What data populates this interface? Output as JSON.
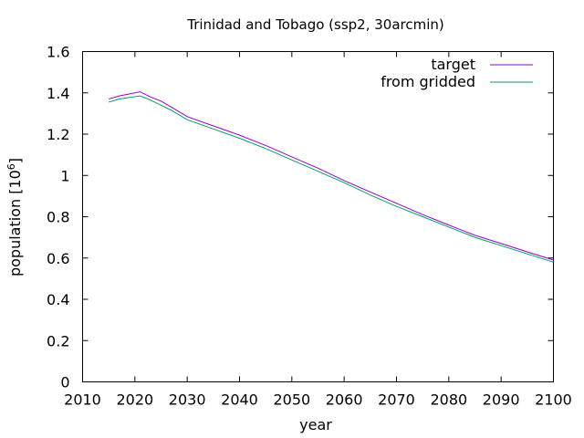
{
  "chart_data": {
    "type": "line",
    "title": "Trinidad and Tobago (ssp2, 30arcmin)",
    "xlabel": "year",
    "ylabel": "population [10",
    "ylabel_sup": "6",
    "ylabel_close": "]",
    "xlim": [
      2010,
      2100
    ],
    "ylim": [
      0,
      1.6
    ],
    "xticks": [
      "2010",
      "2020",
      "2030",
      "2040",
      "2050",
      "2060",
      "2070",
      "2080",
      "2090",
      "2100"
    ],
    "yticks": [
      "0",
      "0.2",
      "0.4",
      "0.6",
      "0.8",
      "1",
      "1.2",
      "1.4",
      "1.6"
    ],
    "grid": false,
    "legend_position": "top-right",
    "series": [
      {
        "name": "target",
        "color": "#9400d3",
        "x": [
          2015,
          2017,
          2019,
          2021,
          2023,
          2025,
          2027,
          2030,
          2035,
          2040,
          2045,
          2050,
          2055,
          2060,
          2065,
          2070,
          2075,
          2080,
          2085,
          2090,
          2095,
          2100
        ],
        "y": [
          1.37,
          1.385,
          1.395,
          1.405,
          1.38,
          1.36,
          1.33,
          1.285,
          1.24,
          1.195,
          1.145,
          1.09,
          1.035,
          0.975,
          0.92,
          0.865,
          0.81,
          0.76,
          0.71,
          0.67,
          0.63,
          0.59
        ]
      },
      {
        "name": "from gridded",
        "color": "#009e73",
        "x": [
          2015,
          2017,
          2019,
          2021,
          2023,
          2025,
          2027,
          2030,
          2035,
          2040,
          2045,
          2050,
          2055,
          2060,
          2065,
          2070,
          2075,
          2080,
          2085,
          2090,
          2095,
          2100
        ],
        "y": [
          1.355,
          1.37,
          1.378,
          1.385,
          1.365,
          1.34,
          1.315,
          1.27,
          1.225,
          1.18,
          1.13,
          1.075,
          1.02,
          0.965,
          0.905,
          0.85,
          0.8,
          0.75,
          0.7,
          0.66,
          0.62,
          0.58
        ]
      }
    ]
  }
}
